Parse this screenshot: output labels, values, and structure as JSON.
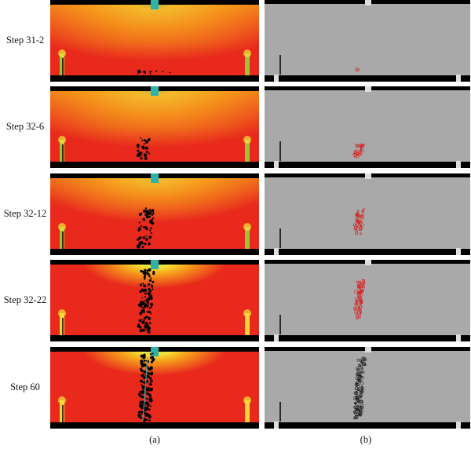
{
  "rows": [
    {
      "label": "Step 31-2",
      "stage": 0
    },
    {
      "label": "Step 32-6",
      "stage": 1
    },
    {
      "label": "Step 32-12",
      "stage": 2
    },
    {
      "label": "Step 32-22",
      "stage": 3
    },
    {
      "label": "Step 60",
      "stage": 4
    }
  ],
  "columns": {
    "a_label": "(a)",
    "b_label": "(b)"
  },
  "colors": {
    "stress_high": "#e8291c",
    "stress_mid": "#f7a21b",
    "stress_low": "#f5e63a",
    "stress_cool": "#2fb3a8",
    "support": "#9bd13a",
    "steel": "#000000",
    "gray_panel": "#a9a9a9",
    "crack_red": "#d62020",
    "crack_dark": "#222222"
  },
  "icons": {
    "a_panel": "stress-field-image",
    "b_panel": "crack-map-image"
  }
}
